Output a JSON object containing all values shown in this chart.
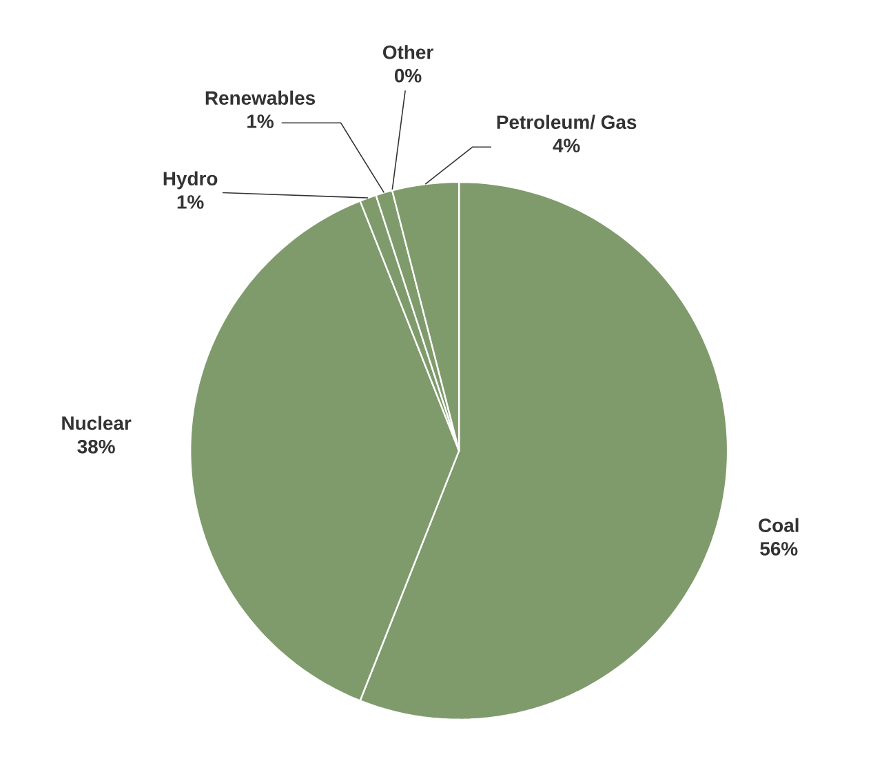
{
  "chart_data": {
    "type": "pie",
    "categories": [
      "Coal",
      "Nuclear",
      "Hydro",
      "Renewables",
      "Other",
      "Petroleum/ Gas"
    ],
    "values": [
      56,
      38,
      1,
      1,
      0,
      4
    ],
    "value_labels": [
      "56%",
      "38%",
      "1%",
      "1%",
      "0%",
      "4%"
    ],
    "colors": [
      "#7f9b6c",
      "#7f9b6c",
      "#7f9b6c",
      "#7f9b6c",
      "#7f9b6c",
      "#7f9b6c"
    ]
  }
}
